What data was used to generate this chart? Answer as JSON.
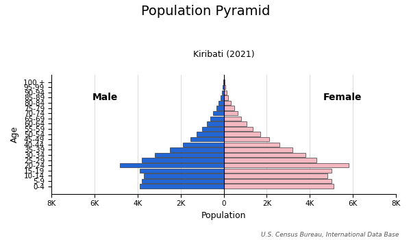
{
  "title": "Population Pyramid",
  "subtitle": "Kiribati (2021)",
  "xlabel": "Population",
  "ylabel": "Age",
  "footnote": "U.S. Census Bureau, International Data Base",
  "age_groups": [
    "0-4",
    "5-9",
    "10-14",
    "15-19",
    "20-24",
    "25-29",
    "30-34",
    "35-39",
    "40-44",
    "45-49",
    "50-54",
    "55-59",
    "60-64",
    "65-69",
    "70-74",
    "75-79",
    "80-84",
    "85-89",
    "90-94",
    "95-99",
    "100 +"
  ],
  "male": [
    3900,
    3800,
    3700,
    3900,
    4800,
    3800,
    3200,
    2500,
    1900,
    1550,
    1250,
    1000,
    780,
    620,
    480,
    350,
    230,
    150,
    90,
    60,
    30
  ],
  "female": [
    5100,
    5000,
    4800,
    5000,
    5800,
    4300,
    3800,
    3200,
    2600,
    2100,
    1700,
    1350,
    1050,
    820,
    650,
    480,
    320,
    200,
    130,
    80,
    50
  ],
  "male_color": "#2166d4",
  "female_color": "#f4b8c1",
  "bar_edge_color": "#111111",
  "male_label": "Male",
  "female_label": "Female",
  "xlim": 8000,
  "xticks": [
    -8000,
    -6000,
    -4000,
    -2000,
    0,
    2000,
    4000,
    6000,
    8000
  ],
  "xtick_labels": [
    "8K",
    "6K",
    "4K",
    "2K",
    "0",
    "2K",
    "4K",
    "6K",
    "8K"
  ],
  "bg_color": "#ffffff",
  "title_fontsize": 14,
  "subtitle_fontsize": 9,
  "label_fontsize": 9,
  "tick_fontsize": 7.5
}
